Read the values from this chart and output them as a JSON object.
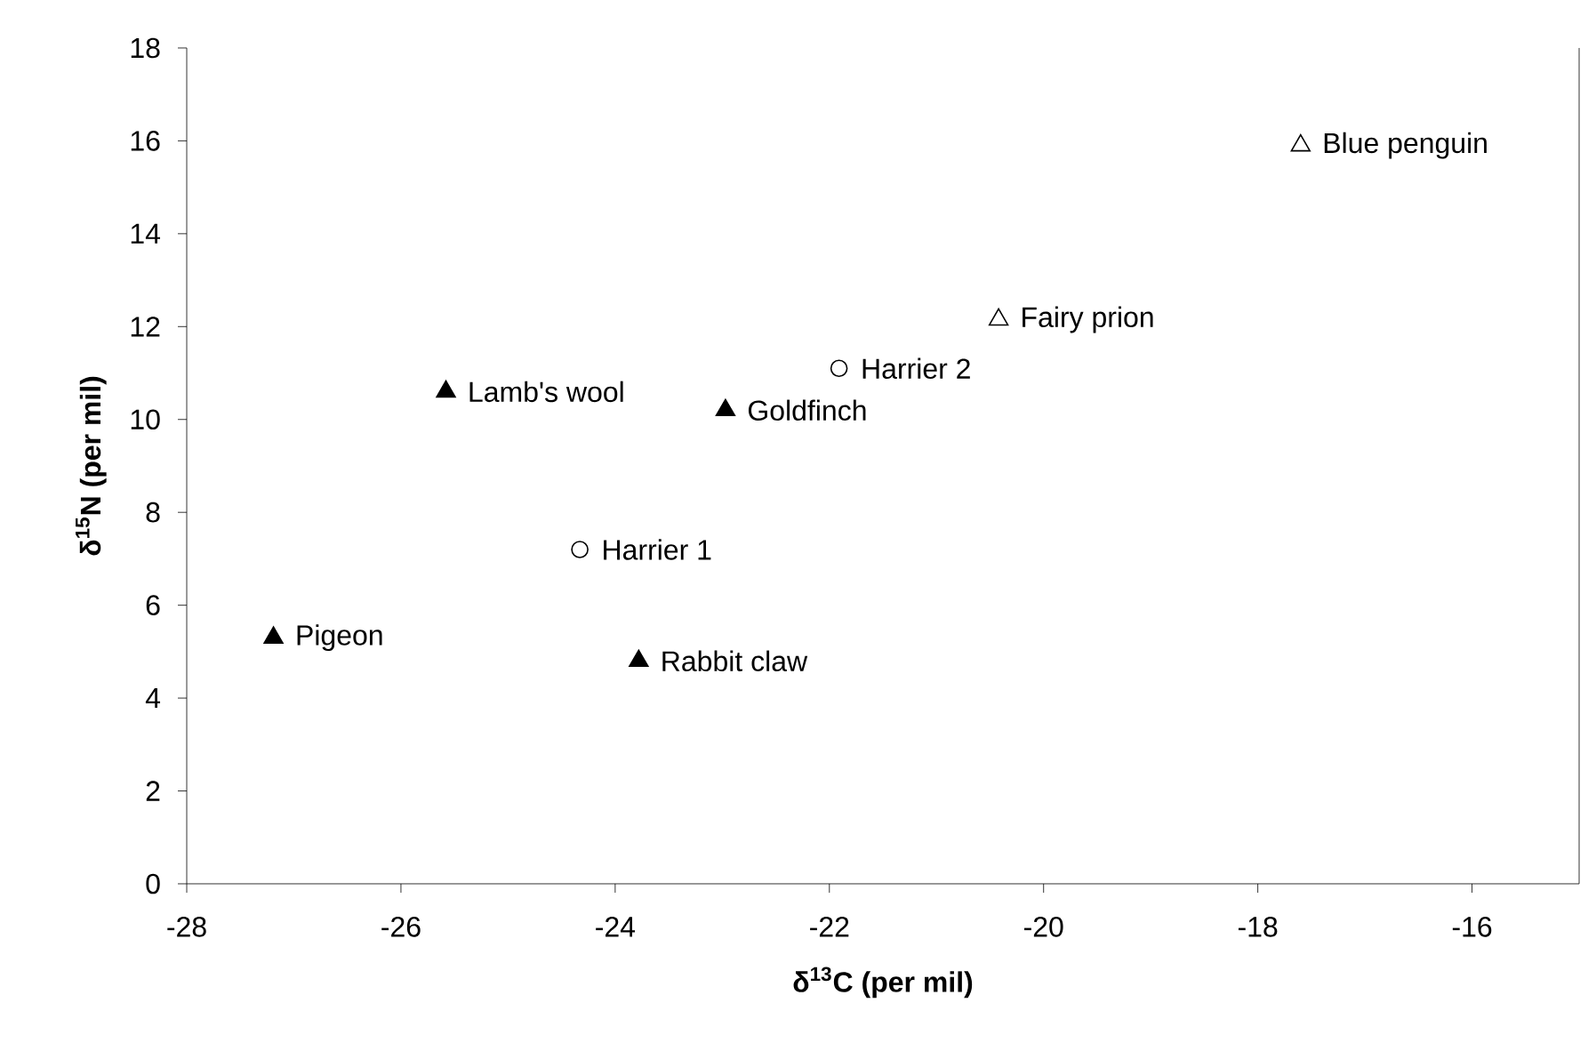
{
  "chart_data": {
    "type": "scatter",
    "xlabel": "δ$^{13}$C (per mil)",
    "ylabel": "δ$^{15}$N (per mil)",
    "xlim": [
      -28,
      -15
    ],
    "xticks": [
      -28,
      -26,
      -24,
      -22,
      -20,
      -18,
      -16
    ],
    "ylim": [
      0,
      18
    ],
    "yticks": [
      0,
      2,
      4,
      6,
      8,
      10,
      12,
      14,
      16,
      18
    ],
    "grid": false,
    "series": [
      {
        "marker": "triangle",
        "color": "#000000",
        "x": [
          -27.19,
          -25.58,
          -22.97,
          -23.78
        ],
        "values": [
          5.3,
          10.6,
          10.2,
          4.8
        ]
      },
      {
        "marker": "circle",
        "color": "#ffffff",
        "x": [
          -24.33,
          -21.91
        ],
        "values": [
          7.2,
          11.1
        ]
      },
      {
        "marker": "triangle",
        "color": "#ffffff",
        "x": [
          -20.42,
          -17.6
        ],
        "values": [
          12.15,
          15.9
        ]
      }
    ],
    "annotations": [
      {
        "text": "Pigeon",
        "x": -27.19,
        "y": 5.3
      },
      {
        "text": "Lamb's wool",
        "x": -25.58,
        "y": 10.6
      },
      {
        "text": "Goldfinch",
        "x": -22.97,
        "y": 10.2
      },
      {
        "text": "Rabbit claw",
        "x": -23.78,
        "y": 4.8
      },
      {
        "text": "Harrier 1",
        "x": -24.33,
        "y": 7.2
      },
      {
        "text": "Harrier 2",
        "x": -21.91,
        "y": 11.1
      },
      {
        "text": "Fairy prion",
        "x": -20.42,
        "y": 12.15
      },
      {
        "text": "Blue penguin",
        "x": -17.6,
        "y": 15.9
      }
    ]
  }
}
